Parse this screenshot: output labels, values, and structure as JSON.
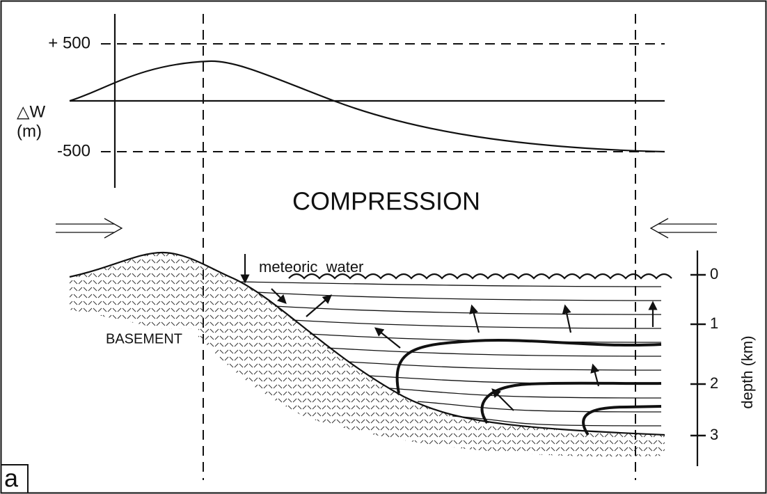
{
  "panel_label": "a",
  "top_plot": {
    "ylabel_symbol": "△W",
    "ylabel_unit": "(m)",
    "yticks": [
      "+ 500",
      "-500"
    ]
  },
  "cross_section": {
    "title": "COMPRESSION",
    "annotation": "meteoric  water",
    "basement_label": "BASEMENT",
    "depth_axis": {
      "label": "depth (km)",
      "ticks": [
        0,
        1,
        2,
        3
      ]
    }
  }
}
